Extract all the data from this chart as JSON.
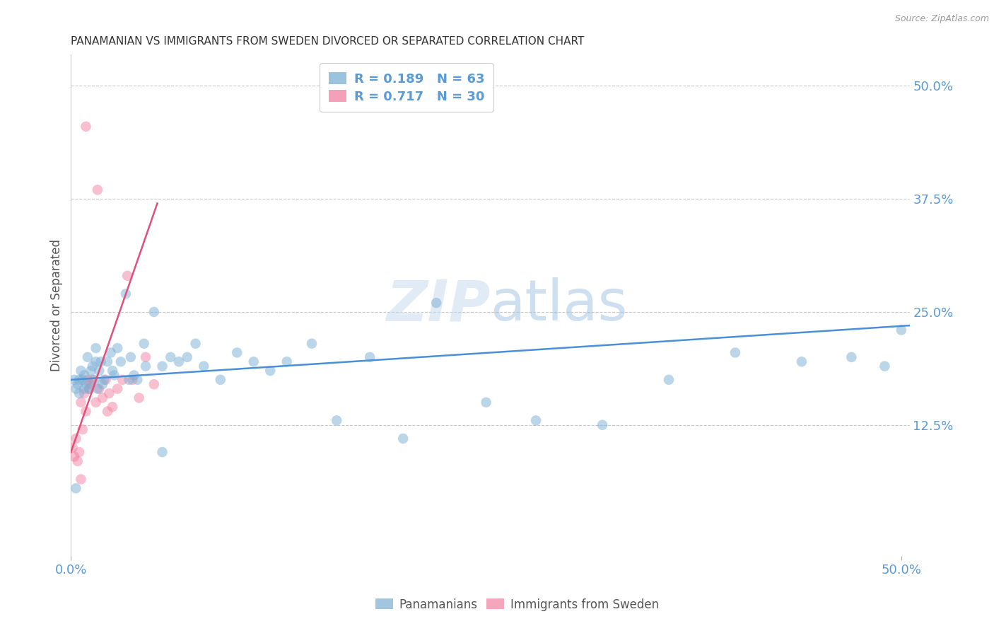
{
  "title": "PANAMANIAN VS IMMIGRANTS FROM SWEDEN DIVORCED OR SEPARATED CORRELATION CHART",
  "source": "Source: ZipAtlas.com",
  "ylabel": "Divorced or Separated",
  "right_yticks": [
    "50.0%",
    "37.5%",
    "25.0%",
    "12.5%"
  ],
  "right_ytick_vals": [
    0.5,
    0.375,
    0.25,
    0.125
  ],
  "xmin": 0.0,
  "xmax": 0.505,
  "ymin": -0.02,
  "ymax": 0.535,
  "watermark_zip": "ZIP",
  "watermark_atlas": "atlas",
  "panamanian_color": "#7bafd4",
  "sweden_color": "#f080a0",
  "scatter_alpha": 0.5,
  "scatter_size": 110,
  "blue_line_color": "#4a90d9",
  "pink_line_color": "#e0507a",
  "grid_color": "#c8c8c8",
  "background_color": "#ffffff",
  "panamanian_x": [
    0.002,
    0.003,
    0.004,
    0.005,
    0.006,
    0.007,
    0.008,
    0.009,
    0.01,
    0.011,
    0.012,
    0.013,
    0.014,
    0.015,
    0.016,
    0.017,
    0.018,
    0.019,
    0.02,
    0.022,
    0.024,
    0.026,
    0.028,
    0.03,
    0.033,
    0.036,
    0.04,
    0.044,
    0.05,
    0.055,
    0.06,
    0.065,
    0.07,
    0.075,
    0.08,
    0.09,
    0.1,
    0.11,
    0.12,
    0.13,
    0.145,
    0.16,
    0.18,
    0.2,
    0.22,
    0.25,
    0.28,
    0.32,
    0.36,
    0.4,
    0.44,
    0.47,
    0.49,
    0.5,
    0.045,
    0.035,
    0.025,
    0.015,
    0.008,
    0.005,
    0.003,
    0.038,
    0.055
  ],
  "panamanian_y": [
    0.175,
    0.165,
    0.17,
    0.16,
    0.185,
    0.175,
    0.18,
    0.17,
    0.2,
    0.165,
    0.185,
    0.19,
    0.175,
    0.21,
    0.165,
    0.185,
    0.195,
    0.17,
    0.175,
    0.195,
    0.205,
    0.18,
    0.21,
    0.195,
    0.27,
    0.2,
    0.175,
    0.215,
    0.25,
    0.19,
    0.2,
    0.195,
    0.2,
    0.215,
    0.19,
    0.175,
    0.205,
    0.195,
    0.185,
    0.195,
    0.215,
    0.13,
    0.2,
    0.11,
    0.26,
    0.15,
    0.13,
    0.125,
    0.175,
    0.205,
    0.195,
    0.2,
    0.19,
    0.23,
    0.19,
    0.175,
    0.185,
    0.195,
    0.165,
    0.175,
    0.055,
    0.18,
    0.095
  ],
  "sweden_x": [
    0.001,
    0.002,
    0.003,
    0.004,
    0.005,
    0.006,
    0.007,
    0.008,
    0.009,
    0.01,
    0.011,
    0.012,
    0.013,
    0.015,
    0.017,
    0.019,
    0.021,
    0.023,
    0.025,
    0.028,
    0.031,
    0.034,
    0.037,
    0.041,
    0.045,
    0.05,
    0.022,
    0.016,
    0.009,
    0.006
  ],
  "sweden_y": [
    0.1,
    0.09,
    0.11,
    0.085,
    0.095,
    0.15,
    0.12,
    0.16,
    0.14,
    0.175,
    0.165,
    0.17,
    0.175,
    0.15,
    0.165,
    0.155,
    0.175,
    0.16,
    0.145,
    0.165,
    0.175,
    0.29,
    0.175,
    0.155,
    0.2,
    0.17,
    0.14,
    0.385,
    0.455,
    0.065
  ],
  "blue_line_x": [
    0.0,
    0.505
  ],
  "blue_line_y": [
    0.175,
    0.235
  ],
  "pink_line_x": [
    0.0,
    0.052
  ],
  "pink_line_y": [
    0.095,
    0.37
  ]
}
